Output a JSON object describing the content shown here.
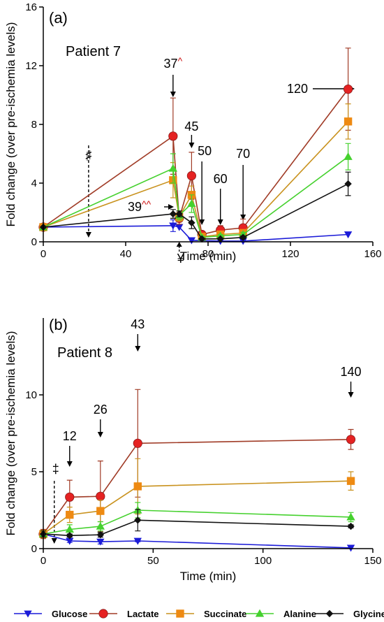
{
  "colors": {
    "Glucose": "#1b1bd8",
    "Lactate": "#e52222",
    "Succinate": "#ee8a12",
    "Alanine": "#45d12e",
    "Glycine": "#111111",
    "lactate_line": "#a03b26",
    "succinate_line": "#c9921e",
    "symbol_red": "#cc1111"
  },
  "legend": [
    {
      "name": "Glucose",
      "marker": "triangle-down"
    },
    {
      "name": "Lactate",
      "marker": "circle"
    },
    {
      "name": "Succinate",
      "marker": "square"
    },
    {
      "name": "Alanine",
      "marker": "triangle-up"
    },
    {
      "name": "Glycine",
      "marker": "diamond"
    }
  ],
  "chart_data": [
    {
      "type": "line",
      "panel": "(a)",
      "title": "Patient 7",
      "xlabel": "Time (min)",
      "ylabel": "Fold change (over pre-ischemia levels)",
      "xlim": [
        0,
        160
      ],
      "ylim": [
        0,
        16
      ],
      "xticks": [
        0,
        40,
        80,
        120,
        160
      ],
      "yticks": [
        0,
        4,
        8,
        12,
        16
      ],
      "series": [
        {
          "name": "Glucose",
          "x": [
            0,
            63,
            66,
            72,
            86,
            97,
            148
          ],
          "y": [
            1.0,
            1.1,
            1.0,
            0.1,
            0.05,
            0.05,
            0.5
          ],
          "err": [
            0,
            0.4,
            0,
            0,
            0,
            0,
            0
          ]
        },
        {
          "name": "Lactate",
          "x": [
            0,
            63,
            66,
            72,
            77,
            86,
            97,
            148
          ],
          "y": [
            1.0,
            7.2,
            1.6,
            4.5,
            0.5,
            0.8,
            0.95,
            10.4
          ],
          "err": [
            0,
            2.6,
            0.4,
            1.6,
            0.2,
            0.3,
            0.6,
            2.8
          ]
        },
        {
          "name": "Succinate",
          "x": [
            0,
            63,
            66,
            72,
            77,
            86,
            97,
            148
          ],
          "y": [
            1.0,
            4.2,
            1.7,
            3.2,
            0.35,
            0.5,
            0.6,
            8.2
          ],
          "err": [
            0,
            1.2,
            0.3,
            0.6,
            0.1,
            0.15,
            0.2,
            1.2
          ]
        },
        {
          "name": "Alanine",
          "x": [
            0,
            63,
            66,
            72,
            77,
            86,
            97,
            148
          ],
          "y": [
            1.0,
            5.0,
            1.8,
            2.6,
            0.3,
            0.4,
            0.5,
            5.8
          ],
          "err": [
            0,
            1.0,
            0.3,
            0.6,
            0.1,
            0.1,
            0.15,
            0.9
          ]
        },
        {
          "name": "Glycine",
          "x": [
            0,
            63,
            66,
            72,
            77,
            86,
            97,
            148
          ],
          "y": [
            1.0,
            1.9,
            1.9,
            1.3,
            0.2,
            0.2,
            0.3,
            3.95
          ],
          "err": [
            0,
            0.3,
            0.2,
            0.4,
            0.05,
            0.05,
            0.1,
            0.8
          ]
        }
      ],
      "annotations": [
        {
          "text": "37",
          "suffix": "^",
          "x": 63
        },
        {
          "text": "45",
          "suffix": "",
          "x": 72
        },
        {
          "text": "50",
          "suffix": "",
          "x": 77
        },
        {
          "text": "60",
          "suffix": "",
          "x": 86
        },
        {
          "text": "70",
          "suffix": "",
          "x": 97
        },
        {
          "text": "120",
          "suffix": "",
          "x": 148
        },
        {
          "text": "39",
          "suffix": "^^",
          "x": 66
        }
      ],
      "symbols": [
        {
          "text": "♯",
          "x": 22
        },
        {
          "text": "¥",
          "x": 66
        }
      ]
    },
    {
      "type": "line",
      "panel": "(b)",
      "title": "Patient 8",
      "xlabel": "Time (min)",
      "ylabel": "Fold change (over pre-ischemia levels)",
      "xlim": [
        0,
        150
      ],
      "ylim": [
        0,
        15
      ],
      "xticks": [
        0,
        50,
        100,
        150
      ],
      "yticks": [
        0,
        5,
        10
      ],
      "series": [
        {
          "name": "Glucose",
          "x": [
            0,
            12,
            26,
            43,
            140
          ],
          "y": [
            0.95,
            0.5,
            0.45,
            0.5,
            0.05
          ],
          "err": [
            0.2,
            0.1,
            0.15,
            0.05,
            0
          ]
        },
        {
          "name": "Lactate",
          "x": [
            0,
            12,
            26,
            43,
            140
          ],
          "y": [
            0.95,
            3.35,
            3.4,
            6.85,
            7.1
          ],
          "err": [
            0.3,
            1.1,
            2.3,
            3.5,
            0.65
          ]
        },
        {
          "name": "Succinate",
          "x": [
            0,
            12,
            26,
            43,
            140
          ],
          "y": [
            0.95,
            2.2,
            2.45,
            4.05,
            4.4
          ],
          "err": [
            0.25,
            0.5,
            0.7,
            1.8,
            0.6
          ]
        },
        {
          "name": "Alanine",
          "x": [
            0,
            12,
            26,
            43,
            140
          ],
          "y": [
            0.95,
            1.25,
            1.45,
            2.5,
            2.05
          ],
          "err": [
            0.2,
            0.3,
            0.3,
            0.5,
            0.3
          ]
        },
        {
          "name": "Glycine",
          "x": [
            0,
            12,
            26,
            43,
            140
          ],
          "y": [
            0.95,
            0.85,
            0.9,
            1.85,
            1.45
          ],
          "err": [
            0.2,
            0.1,
            0.15,
            0.7,
            0.1
          ]
        }
      ],
      "annotations": [
        {
          "text": "12",
          "suffix": "",
          "x": 12
        },
        {
          "text": "26",
          "suffix": "",
          "x": 26
        },
        {
          "text": "43",
          "suffix": "",
          "x": 43
        },
        {
          "text": "140",
          "suffix": "",
          "x": 140
        }
      ],
      "symbols": [
        {
          "text": "‡",
          "x": 5
        }
      ]
    }
  ]
}
